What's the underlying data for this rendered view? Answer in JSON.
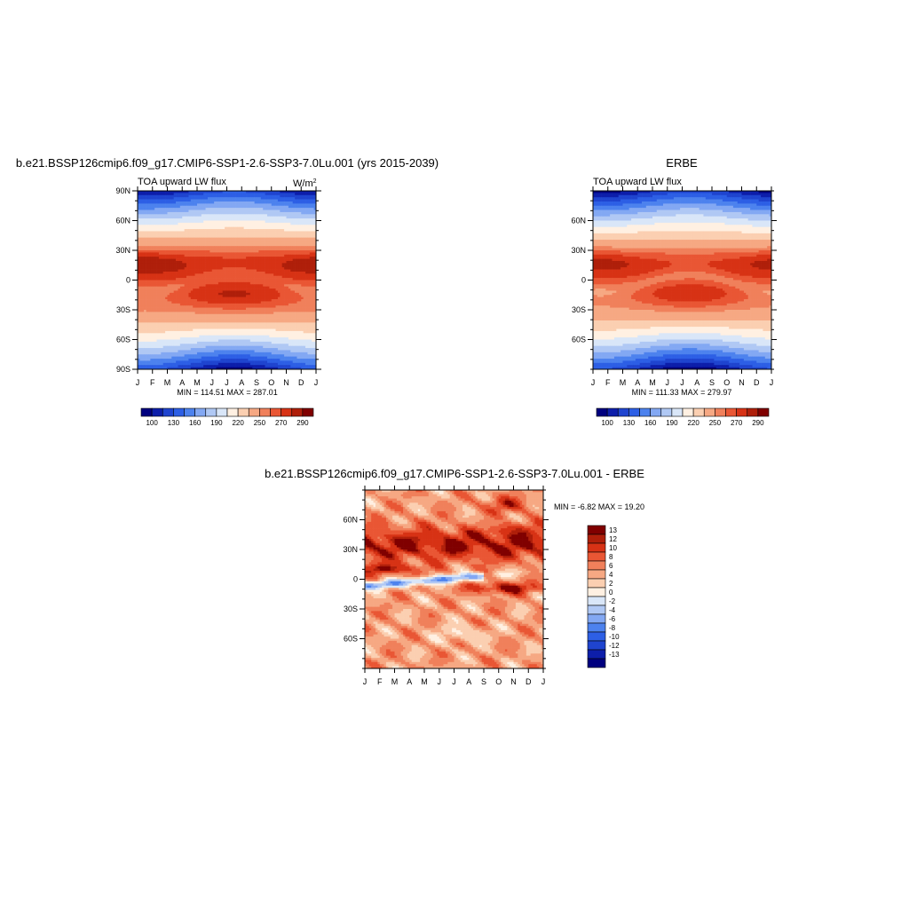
{
  "colors": {
    "scale_main": [
      "#00007f",
      "#0d1eaa",
      "#1f44cf",
      "#2d5fe5",
      "#4d82ee",
      "#83a8f3",
      "#b0c8f4",
      "#d9e6f8",
      "#fff0e2",
      "#fbcfb1",
      "#f6a883",
      "#f0805b",
      "#e95634",
      "#d73215",
      "#af1f0a",
      "#800000"
    ],
    "scale_diff": [
      "#00007f",
      "#0d1eaa",
      "#1f44cf",
      "#2d5fe5",
      "#4d82ee",
      "#83a8f3",
      "#b0c8f4",
      "#d9e6f8",
      "#fff0e2",
      "#fbcfb1",
      "#f6a883",
      "#f0805b",
      "#e95634",
      "#d73215",
      "#af1f0a",
      "#800000"
    ]
  },
  "panels": {
    "model": {
      "title": "b.e21.BSSP126cmip6.f09_g17.CMIP6-SSP1-2.6-SSP3-7.0Lu.001 (yrs 2015-2039)",
      "left_label": "TOA upward LW flux",
      "units_main": "W/m",
      "units_sup": "2",
      "minmax": "MIN = 114.51 MAX = 287.01"
    },
    "obs": {
      "title": "ERBE",
      "left_label": "TOA upward LW flux",
      "minmax": "MIN = 111.33 MAX = 279.97"
    },
    "diff": {
      "title": "b.e21.BSSP126cmip6.f09_g17.CMIP6-SSP1-2.6-SSP3-7.0Lu.001 - ERBE",
      "minmax": "MIN =  -6.82 MAX =  19.20"
    }
  },
  "colorbar_main": {
    "labels": [
      "100",
      "130",
      "160",
      "190",
      "220",
      "250",
      "270",
      "290"
    ]
  },
  "colorbar_diff": {
    "labels": [
      "13",
      "12",
      "10",
      "8",
      "6",
      "4",
      "2",
      "0",
      "-2",
      "-4",
      "-6",
      "-8",
      "-10",
      "-12",
      "-13"
    ]
  },
  "chart_data": [
    {
      "type": "heatmap",
      "title": "b.e21.BSSP126cmip6.f09_g17.CMIP6-SSP1-2.6-SSP3-7.0Lu.001 (yrs 2015-2039)",
      "subtitle": "TOA upward LW flux",
      "units": "W/m2",
      "x_ticks": [
        "J",
        "F",
        "M",
        "A",
        "M",
        "J",
        "J",
        "A",
        "S",
        "O",
        "N",
        "D",
        "J"
      ],
      "y_ticks": [
        "90N",
        "60N",
        "30N",
        "0",
        "30S",
        "60S",
        "90S"
      ],
      "ylim": [
        -90,
        90
      ],
      "min": 114.51,
      "max": 287.01,
      "contour_levels": [
        100,
        115,
        130,
        145,
        160,
        175,
        190,
        205,
        220,
        235,
        250,
        260,
        270,
        280,
        290
      ]
    },
    {
      "type": "heatmap",
      "title": "ERBE",
      "subtitle": "TOA upward LW flux",
      "units": "W/m2",
      "x_ticks": [
        "J",
        "F",
        "M",
        "A",
        "M",
        "J",
        "J",
        "A",
        "S",
        "O",
        "N",
        "D",
        "J"
      ],
      "y_ticks": [
        "60N",
        "30N",
        "0",
        "30S",
        "60S"
      ],
      "ylim": [
        -90,
        90
      ],
      "min": 111.33,
      "max": 279.97,
      "contour_levels": [
        100,
        115,
        130,
        145,
        160,
        175,
        190,
        205,
        220,
        235,
        250,
        260,
        270,
        280,
        290
      ]
    },
    {
      "type": "heatmap",
      "title": "b.e21.BSSP126cmip6.f09_g17.CMIP6-SSP1-2.6-SSP3-7.0Lu.001 - ERBE",
      "subtitle": "",
      "x_ticks": [
        "J",
        "F",
        "M",
        "A",
        "M",
        "J",
        "J",
        "A",
        "S",
        "O",
        "N",
        "D",
        "J"
      ],
      "y_ticks": [
        "60N",
        "30N",
        "0",
        "30S",
        "60S"
      ],
      "ylim": [
        -90,
        90
      ],
      "min": -6.82,
      "max": 19.2,
      "contour_levels": [
        -13,
        -12,
        -10,
        -8,
        -6,
        -4,
        -2,
        0,
        2,
        4,
        6,
        8,
        10,
        12,
        13
      ]
    }
  ]
}
